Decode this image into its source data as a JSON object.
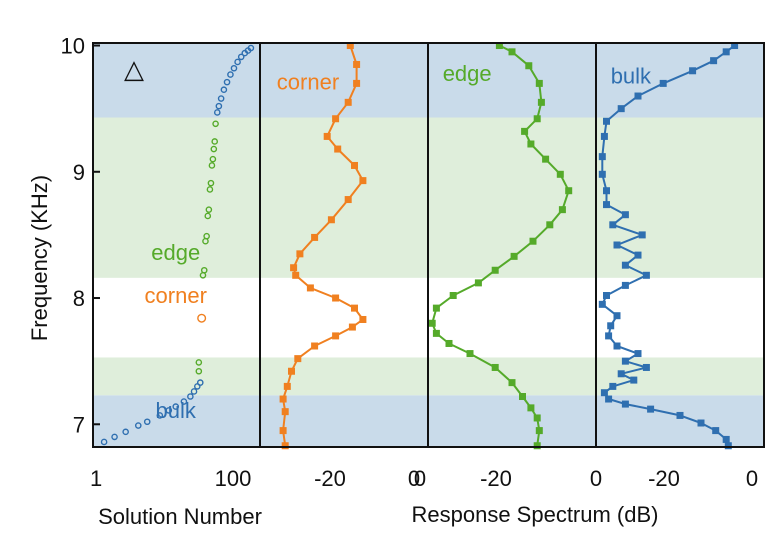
{
  "colors": {
    "bulk": "#2f6fb0",
    "edge": "#55aa2a",
    "corner": "#f08020",
    "bulk_band": "#c9dbea",
    "edge_band": "#dfeedb",
    "corner_band": "#ffffff",
    "frame": "#111111"
  },
  "chart_data": {
    "type": "scatter",
    "y_axis": {
      "label": "Frequency (KHz)",
      "ylim": [
        6.82,
        10.02
      ],
      "ticks": [
        "7",
        "8",
        "9",
        "10"
      ]
    },
    "x_labels": {
      "left": "Solution Number",
      "right": "Response Spectrum (dB)"
    },
    "bands": [
      {
        "name": "bulk",
        "from": 6.82,
        "to": 7.23
      },
      {
        "name": "edge",
        "from": 7.23,
        "to": 7.53
      },
      {
        "name": "corner",
        "from": 7.53,
        "to": 8.16
      },
      {
        "name": "edge",
        "from": 8.16,
        "to": 9.43
      },
      {
        "name": "bulk",
        "from": 9.43,
        "to": 10.02
      }
    ],
    "panels": [
      {
        "id": "solution",
        "xscale": "log",
        "xlim": [
          0.7,
          150
        ],
        "ticks": [
          "1",
          "100"
        ],
        "marker": "△",
        "annotations": [
          {
            "text": "edge",
            "band": "edge",
            "x": 10,
            "y": 8.3
          },
          {
            "text": "corner",
            "band": "corner",
            "x": 10,
            "y": 7.96
          },
          {
            "text": "bulk",
            "band": "bulk",
            "x": 10,
            "y": 7.05
          }
        ],
        "points": [
          {
            "band": "bulk",
            "x": 1,
            "y": 6.86
          },
          {
            "band": "bulk",
            "x": 1.4,
            "y": 6.9
          },
          {
            "band": "bulk",
            "x": 2,
            "y": 6.94
          },
          {
            "band": "bulk",
            "x": 3,
            "y": 6.99
          },
          {
            "band": "bulk",
            "x": 4,
            "y": 7.02
          },
          {
            "band": "bulk",
            "x": 6,
            "y": 7.07
          },
          {
            "band": "bulk",
            "x": 8,
            "y": 7.11
          },
          {
            "band": "bulk",
            "x": 10,
            "y": 7.14
          },
          {
            "band": "bulk",
            "x": 13,
            "y": 7.18
          },
          {
            "band": "bulk",
            "x": 16,
            "y": 7.22
          },
          {
            "band": "bulk",
            "x": 18,
            "y": 7.26
          },
          {
            "band": "bulk",
            "x": 20,
            "y": 7.3
          },
          {
            "band": "bulk",
            "x": 22,
            "y": 7.33
          },
          {
            "band": "edge",
            "x": 21,
            "y": 7.42
          },
          {
            "band": "edge",
            "x": 21,
            "y": 7.49
          },
          {
            "band": "corner",
            "x": 23,
            "y": 7.84
          },
          {
            "band": "edge",
            "x": 24,
            "y": 8.18
          },
          {
            "band": "edge",
            "x": 25,
            "y": 8.22
          },
          {
            "band": "edge",
            "x": 26,
            "y": 8.45
          },
          {
            "band": "edge",
            "x": 27,
            "y": 8.49
          },
          {
            "band": "edge",
            "x": 28,
            "y": 8.65
          },
          {
            "band": "edge",
            "x": 29,
            "y": 8.7
          },
          {
            "band": "edge",
            "x": 30,
            "y": 8.86
          },
          {
            "band": "edge",
            "x": 31,
            "y": 8.91
          },
          {
            "band": "edge",
            "x": 32,
            "y": 9.05
          },
          {
            "band": "edge",
            "x": 33,
            "y": 9.1
          },
          {
            "band": "edge",
            "x": 34,
            "y": 9.18
          },
          {
            "band": "edge",
            "x": 35,
            "y": 9.24
          },
          {
            "band": "edge",
            "x": 36,
            "y": 9.38
          },
          {
            "band": "bulk",
            "x": 38,
            "y": 9.47
          },
          {
            "band": "bulk",
            "x": 40,
            "y": 9.52
          },
          {
            "band": "bulk",
            "x": 43,
            "y": 9.58
          },
          {
            "band": "bulk",
            "x": 47,
            "y": 9.65
          },
          {
            "band": "bulk",
            "x": 52,
            "y": 9.71
          },
          {
            "band": "bulk",
            "x": 58,
            "y": 9.77
          },
          {
            "band": "bulk",
            "x": 65,
            "y": 9.82
          },
          {
            "band": "bulk",
            "x": 73,
            "y": 9.87
          },
          {
            "band": "bulk",
            "x": 82,
            "y": 9.91
          },
          {
            "band": "bulk",
            "x": 92,
            "y": 9.94
          },
          {
            "band": "bulk",
            "x": 102,
            "y": 9.96
          },
          {
            "band": "bulk",
            "x": 112,
            "y": 9.98
          }
        ]
      },
      {
        "id": "corner-spectrum",
        "series": "corner",
        "label": "corner",
        "label_pos": {
          "x": -36,
          "y": 9.65
        },
        "xlim": [
          -40,
          0
        ],
        "ticks": [
          "-20",
          "0"
        ],
        "curve": [
          [
            -34,
            6.83
          ],
          [
            -34.5,
            6.95
          ],
          [
            -34,
            7.1
          ],
          [
            -34.5,
            7.2
          ],
          [
            -33.5,
            7.3
          ],
          [
            -32.5,
            7.42
          ],
          [
            -31,
            7.52
          ],
          [
            -27,
            7.62
          ],
          [
            -22,
            7.7
          ],
          [
            -18,
            7.77
          ],
          [
            -15.5,
            7.83
          ],
          [
            -17.5,
            7.92
          ],
          [
            -22,
            8.0
          ],
          [
            -28,
            8.08
          ],
          [
            -31.5,
            8.18
          ],
          [
            -32,
            8.24
          ],
          [
            -30.5,
            8.35
          ],
          [
            -27,
            8.48
          ],
          [
            -23,
            8.62
          ],
          [
            -19,
            8.78
          ],
          [
            -15.5,
            8.93
          ],
          [
            -17.5,
            9.05
          ],
          [
            -21.5,
            9.18
          ],
          [
            -24,
            9.28
          ],
          [
            -22,
            9.42
          ],
          [
            -19,
            9.55
          ],
          [
            -17,
            9.7
          ],
          [
            -17,
            9.85
          ],
          [
            -18.5,
            10.0
          ]
        ]
      },
      {
        "id": "edge-spectrum",
        "series": "edge",
        "label": "edge",
        "label_pos": {
          "x": -36.5,
          "y": 9.72
        },
        "xlim": [
          -40,
          0
        ],
        "ticks": [
          "0",
          "-20"
        ],
        "curve": [
          [
            -14,
            6.83
          ],
          [
            -13.5,
            6.95
          ],
          [
            -14,
            7.05
          ],
          [
            -15.5,
            7.13
          ],
          [
            -17.5,
            7.22
          ],
          [
            -20,
            7.33
          ],
          [
            -24,
            7.45
          ],
          [
            -30,
            7.56
          ],
          [
            -35,
            7.64
          ],
          [
            -38,
            7.72
          ],
          [
            -39,
            7.8
          ],
          [
            -38,
            7.92
          ],
          [
            -34,
            8.02
          ],
          [
            -28,
            8.12
          ],
          [
            -24,
            8.22
          ],
          [
            -19.5,
            8.33
          ],
          [
            -15,
            8.45
          ],
          [
            -11,
            8.58
          ],
          [
            -8,
            8.7
          ],
          [
            -6.5,
            8.85
          ],
          [
            -8.5,
            8.98
          ],
          [
            -12,
            9.1
          ],
          [
            -15.5,
            9.22
          ],
          [
            -17,
            9.32
          ],
          [
            -14,
            9.42
          ],
          [
            -13,
            9.55
          ],
          [
            -13.5,
            9.7
          ],
          [
            -16,
            9.84
          ],
          [
            -20,
            9.95
          ],
          [
            -23,
            10.0
          ]
        ]
      },
      {
        "id": "bulk-spectrum",
        "series": "bulk",
        "label": "bulk",
        "label_pos": {
          "x": -36.5,
          "y": 9.7
        },
        "xlim": [
          -40,
          0
        ],
        "ticks": [
          "0",
          "-20",
          "0"
        ],
        "curve": [
          [
            -8.5,
            6.83
          ],
          [
            -9,
            6.88
          ],
          [
            -11.5,
            6.95
          ],
          [
            -15,
            7.01
          ],
          [
            -20,
            7.07
          ],
          [
            -27,
            7.12
          ],
          [
            -33,
            7.16
          ],
          [
            -37,
            7.2
          ],
          [
            -38,
            7.25
          ],
          [
            -36,
            7.3
          ],
          [
            -31,
            7.35
          ],
          [
            -34,
            7.4
          ],
          [
            -28,
            7.45
          ],
          [
            -33,
            7.5
          ],
          [
            -30,
            7.56
          ],
          [
            -35,
            7.62
          ],
          [
            -37,
            7.7
          ],
          [
            -36.5,
            7.78
          ],
          [
            -35,
            7.86
          ],
          [
            -38.5,
            7.95
          ],
          [
            -37.5,
            8.02
          ],
          [
            -33,
            8.1
          ],
          [
            -28,
            8.18
          ],
          [
            -33,
            8.26
          ],
          [
            -30,
            8.34
          ],
          [
            -35,
            8.42
          ],
          [
            -29,
            8.5
          ],
          [
            -36,
            8.58
          ],
          [
            -33,
            8.66
          ],
          [
            -37.5,
            8.74
          ],
          [
            -37.5,
            8.85
          ],
          [
            -38.5,
            8.98
          ],
          [
            -38.5,
            9.12
          ],
          [
            -38,
            9.28
          ],
          [
            -37.5,
            9.4
          ],
          [
            -34,
            9.5
          ],
          [
            -30,
            9.6
          ],
          [
            -24,
            9.7
          ],
          [
            -17,
            9.8
          ],
          [
            -12,
            9.88
          ],
          [
            -9,
            9.95
          ],
          [
            -7,
            10.0
          ]
        ]
      }
    ]
  }
}
